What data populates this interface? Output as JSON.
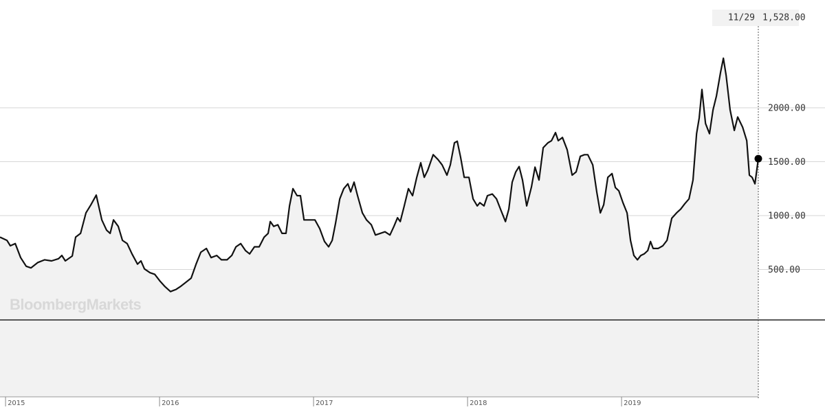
{
  "chart_data": {
    "type": "line",
    "watermark": "BloombergMarkets",
    "last_point": {
      "date": "11/29",
      "value": 1528,
      "value_label": "1,528.00"
    },
    "xlim": [
      2014.964,
      2019.888
    ],
    "xticks": [
      2015,
      2016,
      2017,
      2018,
      2019
    ],
    "ylim": [
      32,
      3000
    ],
    "yticks": [
      {
        "value": 500,
        "label": "500.00"
      },
      {
        "value": 1000,
        "label": "1000.00"
      },
      {
        "value": 1500,
        "label": "1500.00"
      },
      {
        "value": 2000,
        "label": "2000.00"
      }
    ],
    "grid": true,
    "x": [
      2014.964,
      2015.009,
      2015.031,
      2015.063,
      2015.098,
      2015.134,
      2015.165,
      2015.21,
      2015.254,
      2015.299,
      2015.344,
      2015.366,
      2015.388,
      2015.433,
      2015.455,
      2015.487,
      2015.522,
      2015.554,
      2015.589,
      2015.625,
      2015.656,
      2015.679,
      2015.701,
      2015.732,
      2015.759,
      2015.79,
      2015.821,
      2015.857,
      2015.879,
      2015.902,
      2015.938,
      2015.969,
      2016.004,
      2016.036,
      2016.071,
      2016.107,
      2016.134,
      2016.17,
      2016.205,
      2016.237,
      2016.268,
      2016.304,
      2016.335,
      2016.371,
      2016.402,
      2016.438,
      2016.469,
      2016.496,
      2016.527,
      2016.558,
      2016.585,
      2016.616,
      2016.647,
      2016.679,
      2016.705,
      2016.719,
      2016.741,
      2016.768,
      2016.795,
      2016.821,
      2016.844,
      2016.866,
      2016.893,
      2016.915,
      2016.938,
      2016.973,
      2017.009,
      2017.04,
      2017.071,
      2017.098,
      2017.121,
      2017.143,
      2017.17,
      2017.196,
      2017.223,
      2017.241,
      2017.263,
      2017.286,
      2017.317,
      2017.344,
      2017.375,
      2017.402,
      2017.433,
      2017.464,
      2017.496,
      2017.522,
      2017.545,
      2017.563,
      2017.589,
      2017.616,
      2017.643,
      2017.67,
      2017.696,
      2017.719,
      2017.741,
      2017.777,
      2017.808,
      2017.835,
      2017.866,
      2017.888,
      2017.915,
      2017.933,
      2017.955,
      2017.978,
      2018.009,
      2018.036,
      2018.063,
      2018.08,
      2018.107,
      2018.129,
      2018.161,
      2018.188,
      2018.214,
      2018.246,
      2018.268,
      2018.29,
      2018.313,
      2018.335,
      2018.357,
      2018.384,
      2018.415,
      2018.438,
      2018.464,
      2018.491,
      2018.522,
      2018.545,
      2018.571,
      2018.589,
      2018.616,
      2018.647,
      2018.679,
      2018.705,
      2018.732,
      2018.759,
      2018.781,
      2018.813,
      2018.839,
      2018.862,
      2018.884,
      2018.911,
      2018.938,
      2018.96,
      2018.982,
      2019.009,
      2019.036,
      2019.058,
      2019.08,
      2019.103,
      2019.125,
      2019.147,
      2019.17,
      2019.188,
      2019.205,
      2019.237,
      2019.268,
      2019.295,
      2019.326,
      2019.357,
      2019.384,
      2019.411,
      2019.438,
      2019.464,
      2019.487,
      2019.504,
      2019.522,
      2019.545,
      2019.571,
      2019.594,
      2019.616,
      2019.643,
      2019.661,
      2019.679,
      2019.705,
      2019.732,
      2019.754,
      2019.786,
      2019.813,
      2019.83,
      2019.848,
      2019.866,
      2019.888
    ],
    "series": [
      {
        "color": "#111111",
        "values": [
          800,
          770,
          720,
          740,
          610,
          530,
          515,
          565,
          590,
          580,
          600,
          630,
          580,
          625,
          800,
          835,
          1025,
          1100,
          1190,
          960,
          865,
          835,
          960,
          900,
          770,
          740,
          645,
          550,
          580,
          505,
          470,
          455,
          390,
          340,
          295,
          315,
          340,
          380,
          420,
          550,
          660,
          695,
          610,
          630,
          590,
          590,
          630,
          710,
          740,
          675,
          645,
          710,
          710,
          800,
          835,
          945,
          900,
          915,
          835,
          835,
          1090,
          1250,
          1185,
          1185,
          960,
          960,
          960,
          880,
          760,
          710,
          770,
          930,
          1155,
          1250,
          1295,
          1220,
          1310,
          1185,
          1025,
          960,
          915,
          820,
          835,
          850,
          820,
          900,
          980,
          945,
          1090,
          1250,
          1185,
          1355,
          1490,
          1355,
          1420,
          1565,
          1520,
          1470,
          1375,
          1470,
          1675,
          1690,
          1540,
          1355,
          1355,
          1155,
          1090,
          1120,
          1090,
          1185,
          1200,
          1155,
          1060,
          945,
          1060,
          1310,
          1405,
          1455,
          1330,
          1090,
          1265,
          1450,
          1330,
          1630,
          1675,
          1695,
          1770,
          1695,
          1725,
          1610,
          1375,
          1405,
          1550,
          1565,
          1565,
          1470,
          1220,
          1025,
          1100,
          1355,
          1390,
          1260,
          1230,
          1120,
          1025,
          770,
          630,
          590,
          630,
          645,
          675,
          760,
          695,
          695,
          720,
          770,
          975,
          1025,
          1060,
          1110,
          1155,
          1330,
          1760,
          1905,
          2170,
          1855,
          1760,
          1980,
          2110,
          2330,
          2460,
          2300,
          1980,
          1790,
          1915,
          1820,
          1695,
          1375,
          1355,
          1295,
          1528
        ]
      }
    ]
  }
}
